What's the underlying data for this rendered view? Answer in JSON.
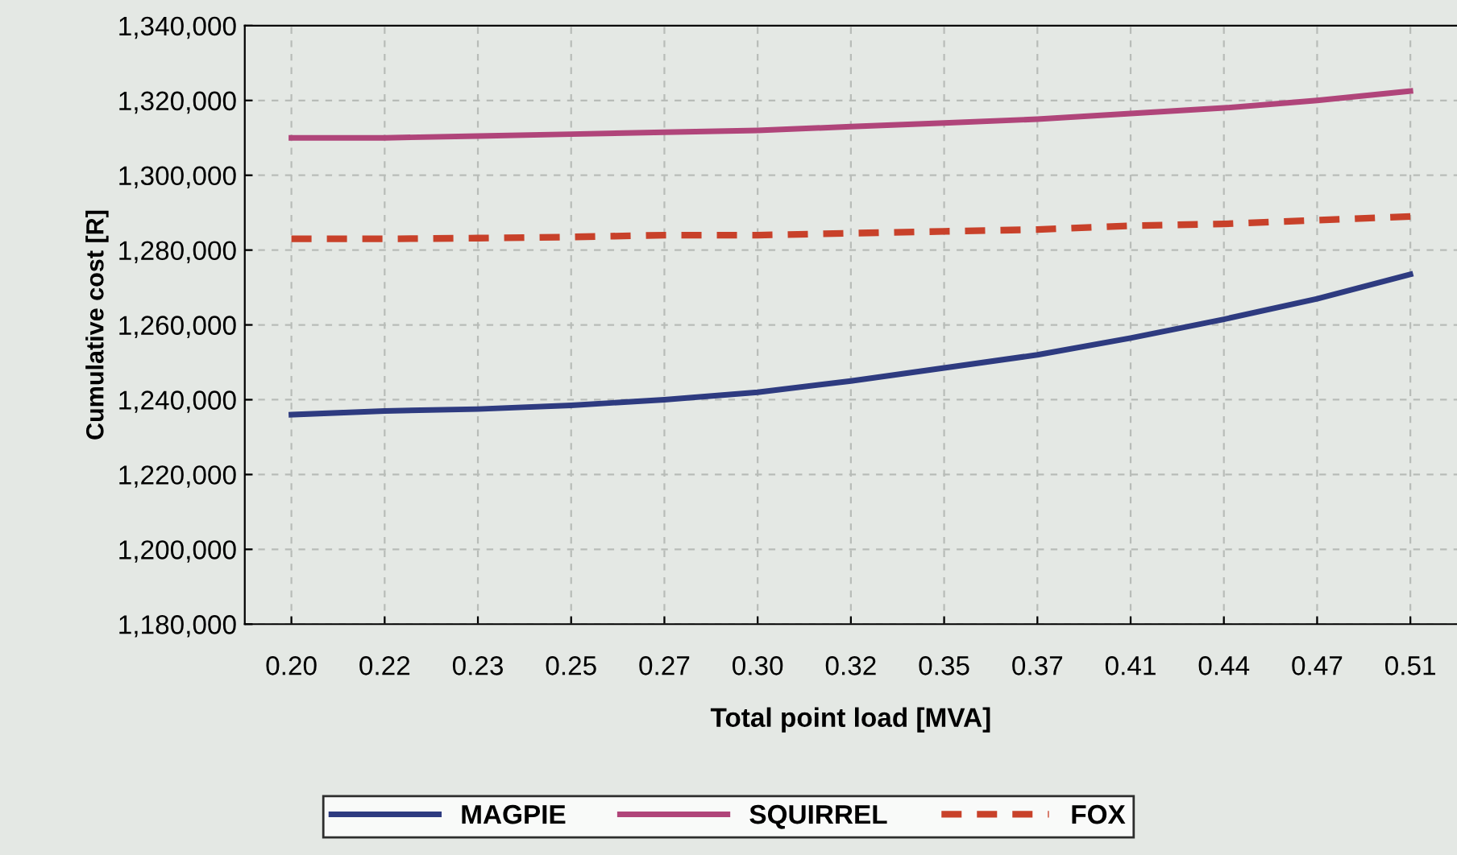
{
  "chart_data": {
    "type": "line",
    "xlabel": "Total point load [MVA]",
    "ylabel": "Cumulative cost [R]",
    "categories": [
      "0.20",
      "0.22",
      "0.23",
      "0.25",
      "0.27",
      "0.30",
      "0.32",
      "0.35",
      "0.37",
      "0.41",
      "0.44",
      "0.47",
      "0.51"
    ],
    "ylim": [
      1180000,
      1340000
    ],
    "yticks": [
      {
        "value": 1180000,
        "label": "1,180,000"
      },
      {
        "value": 1200000,
        "label": "1,200,000"
      },
      {
        "value": 1220000,
        "label": "1,220,000"
      },
      {
        "value": 1240000,
        "label": "1,240,000"
      },
      {
        "value": 1260000,
        "label": "1,260,000"
      },
      {
        "value": 1280000,
        "label": "1,280,000"
      },
      {
        "value": 1300000,
        "label": "1,300,000"
      },
      {
        "value": 1320000,
        "label": "1,320,000"
      },
      {
        "value": 1340000,
        "label": "1,340,000"
      }
    ],
    "grid": true,
    "legend": "bottom",
    "marker": "none",
    "series": [
      {
        "name": "MAGPIE",
        "color": "#2e3b80",
        "line_style": "solid",
        "values": [
          1236000,
          1237000,
          1237500,
          1238500,
          1240000,
          1242000,
          1245000,
          1248500,
          1252000,
          1256500,
          1261500,
          1267000,
          1273500
        ]
      },
      {
        "name": "SQUIRREL",
        "color": "#b0457a",
        "line_style": "solid",
        "values": [
          1310000,
          1310000,
          1310500,
          1311000,
          1311500,
          1312000,
          1313000,
          1314000,
          1315000,
          1316500,
          1318000,
          1320000,
          1322500
        ]
      },
      {
        "name": "FOX",
        "color": "#c8412a",
        "line_style": "dashed",
        "values": [
          1283000,
          1283000,
          1283200,
          1283500,
          1284000,
          1284000,
          1284500,
          1285000,
          1285500,
          1286500,
          1287000,
          1288000,
          1289000
        ]
      }
    ]
  }
}
